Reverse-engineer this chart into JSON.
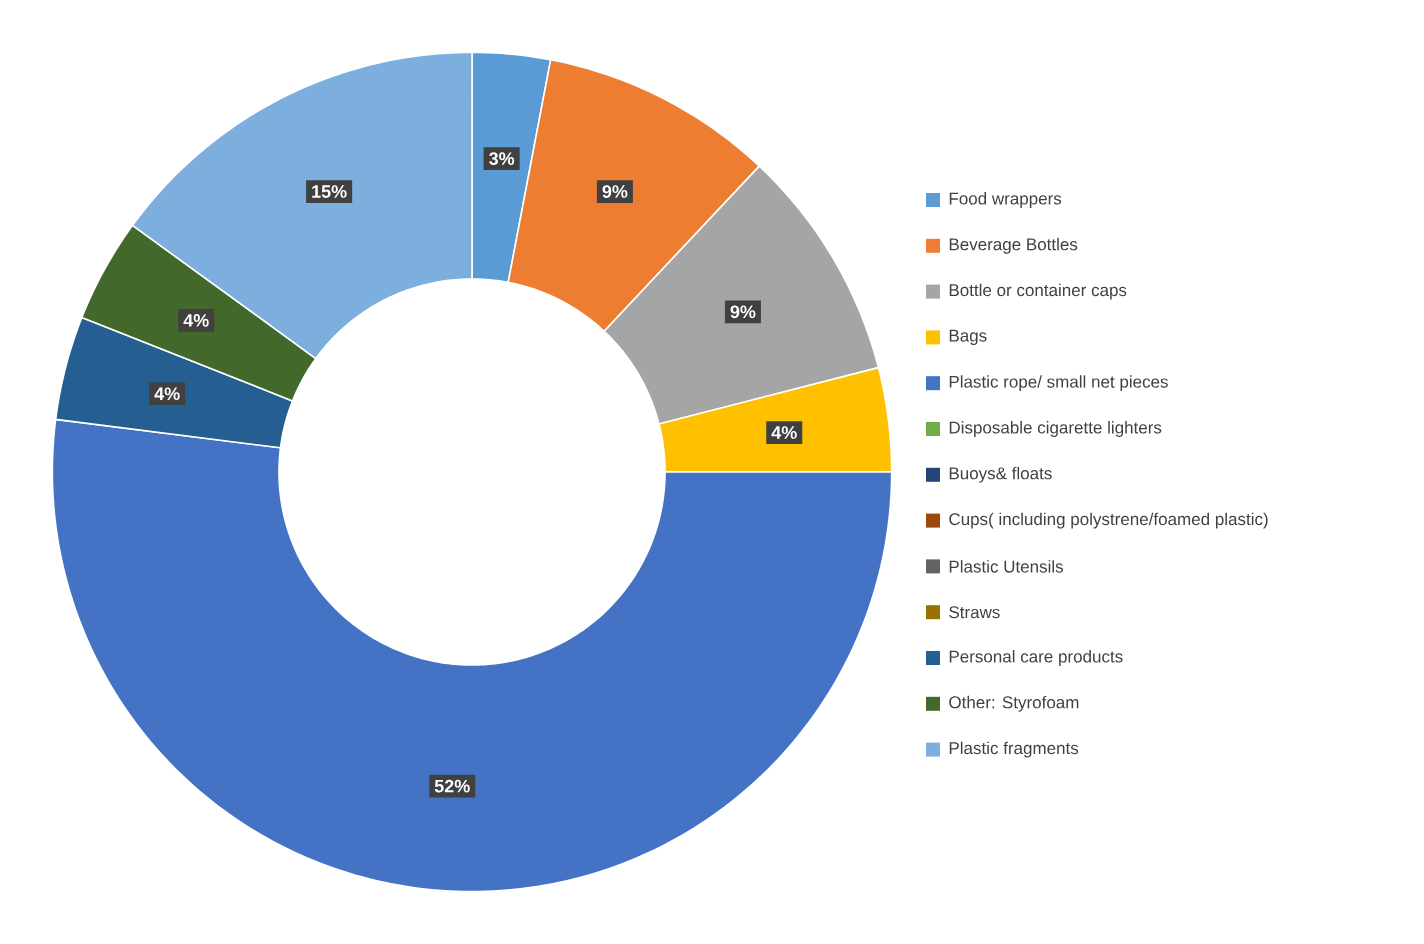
{
  "chart_data": {
    "type": "donut",
    "categories": [
      "Food wrappers",
      "Beverage Bottles",
      "Bottle or container caps",
      "Bags",
      "Plastic rope/ small net pieces",
      "Disposable cigarette lighters",
      "Buoys& floats",
      "Cups( including polystrene/foamed plastic)",
      "Plastic Utensils",
      "Straws",
      "Personal care products",
      "Other: Styrofoam",
      "Plastic fragments"
    ],
    "values": [
      3,
      9,
      9,
      4,
      52,
      0,
      0,
      0,
      0,
      0,
      4,
      4,
      15
    ],
    "value_labels": [
      "3%",
      "9%",
      "9%",
      "4%",
      "52%",
      null,
      null,
      null,
      null,
      null,
      "4%",
      "4%",
      "15%"
    ],
    "colors": [
      "#5b9bd5",
      "#ed7d31",
      "#a5a5a5",
      "#ffc000",
      "#4472c4",
      "#70ad47",
      "#264478",
      "#9e480e",
      "#636363",
      "#997300",
      "#255e91",
      "#43682b",
      "#7cafdd"
    ],
    "legend": "right"
  }
}
